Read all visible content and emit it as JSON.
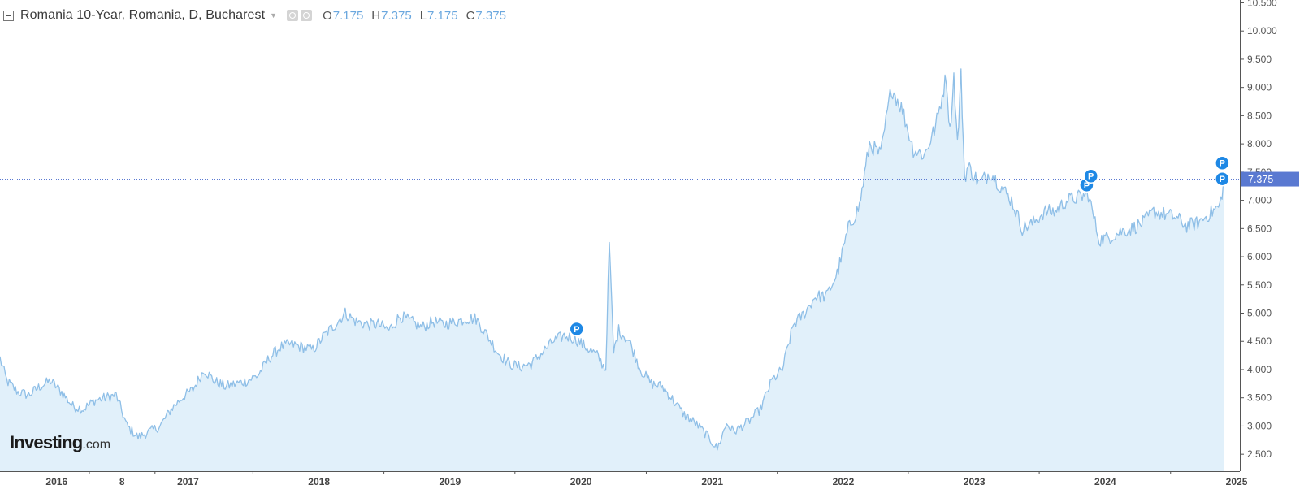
{
  "legend": {
    "title": "Romania 10-Year, Romania, D, Bucharest",
    "open_label": "O",
    "open": "7.175",
    "high_label": "H",
    "high": "7.375",
    "low_label": "L",
    "low": "7.175",
    "close_label": "C",
    "close": "7.375"
  },
  "logo": {
    "main": "Investing",
    "suffix": ".com"
  },
  "colors": {
    "line": "#8fbfe7",
    "fill": "#e1f0fa",
    "marker": "#1e88e5",
    "price_tag": "#5a79d1"
  },
  "chart_data": {
    "type": "area",
    "title": "Romania 10-Year, Romania, D, Bucharest",
    "x_ticks": [
      "2016",
      "8",
      "2017",
      "2018",
      "2019",
      "2020",
      "2021",
      "2022",
      "2023",
      "2024",
      "2025"
    ],
    "y_ticks": [
      "2.500",
      "3.000",
      "3.500",
      "4.000",
      "4.500",
      "5.000",
      "5.500",
      "6.000",
      "6.500",
      "7.000",
      "7.500",
      "8.000",
      "8.500",
      "9.000",
      "9.500",
      "10.000",
      "10.500"
    ],
    "ylim": [
      2.2,
      10.55
    ],
    "xlim": [
      "2015-07-27",
      "2025-01-10"
    ],
    "last_price": "7.375",
    "markers": [
      {
        "x": "2019-12-20",
        "y": 4.72,
        "label": "P"
      },
      {
        "x": "2023-11-10",
        "y": 7.27,
        "label": "P"
      },
      {
        "x": "2023-11-22",
        "y": 7.43,
        "label": "P"
      },
      {
        "x": "2024-11-22",
        "y": 7.66,
        "label": "P"
      },
      {
        "x": "2024-11-22",
        "y": 7.38,
        "label": "P"
      }
    ],
    "series": [
      {
        "x": [
          "2015-07-27",
          "2015-08-15",
          "2015-09-15",
          "2015-10-15",
          "2015-11-15",
          "2015-12-15",
          "2016-01-15",
          "2016-02-15",
          "2016-03-15",
          "2016-04-15",
          "2016-05-15",
          "2016-06-15",
          "2016-07-15",
          "2016-08-15",
          "2016-09-15",
          "2016-10-15",
          "2016-11-15",
          "2016-12-15",
          "2017-01-15",
          "2017-02-15",
          "2017-03-15",
          "2017-04-15",
          "2017-05-15",
          "2017-06-15",
          "2017-07-15",
          "2017-08-15",
          "2017-09-15",
          "2017-10-15",
          "2017-11-15",
          "2017-12-15",
          "2018-01-15",
          "2018-02-15",
          "2018-03-15",
          "2018-04-15",
          "2018-05-15",
          "2018-06-15",
          "2018-07-15",
          "2018-08-15",
          "2018-09-15",
          "2018-10-15",
          "2018-11-15",
          "2018-12-15",
          "2019-01-15",
          "2019-02-15",
          "2019-03-15",
          "2019-04-15",
          "2019-05-15",
          "2019-06-15",
          "2019-07-15",
          "2019-08-15",
          "2019-09-15",
          "2019-10-15",
          "2019-11-15",
          "2019-12-15",
          "2020-01-15",
          "2020-02-15",
          "2020-03-10",
          "2020-03-20",
          "2020-04-01",
          "2020-04-15",
          "2020-05-15",
          "2020-06-15",
          "2020-07-15",
          "2020-08-15",
          "2020-09-15",
          "2020-10-15",
          "2020-11-15",
          "2020-12-15",
          "2021-01-15",
          "2021-02-10",
          "2021-03-01",
          "2021-03-15",
          "2021-04-15",
          "2021-05-15",
          "2021-06-15",
          "2021-07-15",
          "2021-08-15",
          "2021-09-15",
          "2021-10-15",
          "2021-11-15",
          "2021-12-15",
          "2022-01-15",
          "2022-02-15",
          "2022-03-15",
          "2022-04-15",
          "2022-05-15",
          "2022-06-15",
          "2022-07-15",
          "2022-08-15",
          "2022-09-15",
          "2022-10-15",
          "2022-10-25",
          "2022-11-05",
          "2022-11-15",
          "2022-11-25",
          "2022-12-05",
          "2022-12-15",
          "2023-01-15",
          "2023-02-15",
          "2023-03-15",
          "2023-04-15",
          "2023-05-15",
          "2023-06-15",
          "2023-07-15",
          "2023-08-15",
          "2023-09-15",
          "2023-10-15",
          "2023-11-15",
          "2023-12-15",
          "2024-01-15",
          "2024-02-15",
          "2024-03-15",
          "2024-04-15",
          "2024-05-15",
          "2024-06-15",
          "2024-07-15",
          "2024-08-15",
          "2024-09-15",
          "2024-10-15",
          "2024-11-15",
          "2024-11-28"
        ],
        "y": [
          4.2,
          3.8,
          3.6,
          3.55,
          3.7,
          3.8,
          3.6,
          3.35,
          3.3,
          3.45,
          3.5,
          3.55,
          3.0,
          2.8,
          2.9,
          3.0,
          3.3,
          3.5,
          3.65,
          4.0,
          3.8,
          3.7,
          3.75,
          3.8,
          3.9,
          4.2,
          4.4,
          4.45,
          4.4,
          4.35,
          4.6,
          4.8,
          5.0,
          4.85,
          4.8,
          4.8,
          4.7,
          4.95,
          4.85,
          4.75,
          4.85,
          4.8,
          4.85,
          4.9,
          4.9,
          4.6,
          4.3,
          4.1,
          4.05,
          4.1,
          4.3,
          4.5,
          4.6,
          4.55,
          4.4,
          4.25,
          4.0,
          6.25,
          4.3,
          4.7,
          4.5,
          4.0,
          3.75,
          3.7,
          3.45,
          3.2,
          3.05,
          2.85,
          2.6,
          3.05,
          2.9,
          2.95,
          3.1,
          3.3,
          3.8,
          4.0,
          4.8,
          5.0,
          5.3,
          5.3,
          5.7,
          6.5,
          6.9,
          8.0,
          7.8,
          9.0,
          8.6,
          7.9,
          7.8,
          8.3,
          9.2,
          8.2,
          9.2,
          8.0,
          9.2,
          7.4,
          7.6,
          7.3,
          7.5,
          7.25,
          7.0,
          6.5,
          6.6,
          6.8,
          6.8,
          7.0,
          7.05,
          7.1,
          6.3,
          6.35,
          6.45,
          6.5,
          6.6,
          6.8,
          6.75,
          6.7,
          6.55,
          6.6,
          6.75,
          6.9,
          7.375
        ]
      }
    ]
  }
}
